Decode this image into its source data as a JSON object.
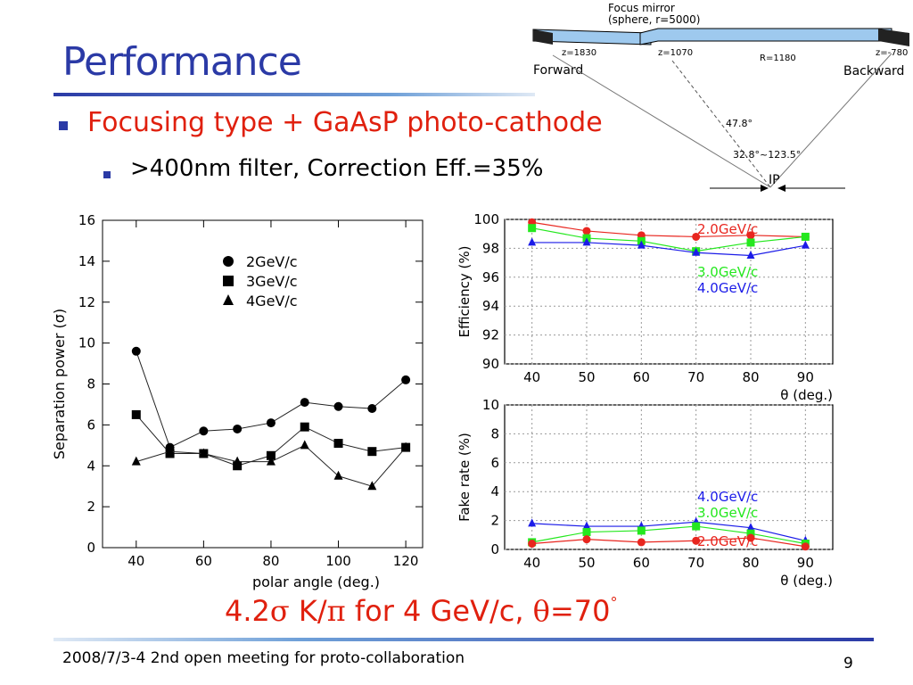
{
  "slide": {
    "title": "Performance",
    "bullet1": "Focusing type + GaAsP photo-cathode",
    "bullet2": ">400nm filter, Correction Eff.=35%",
    "summary_pre": "4.2",
    "summary_sigma": "σ",
    "summary_mid": " K/",
    "summary_pi": "π",
    "summary_post": " for 4 GeV/c, ",
    "summary_theta": "θ",
    "summary_val": "=70",
    "summary_deg": "°",
    "footer": "2008/7/3-4 2nd open meeting for proto-collaboration",
    "page_number": "9",
    "colors": {
      "title": "#2b3aa6",
      "accent": "#e0200e",
      "red": "#e8261f",
      "green": "#24e81e",
      "blue": "#1b1be8"
    }
  },
  "diagram": {
    "mirror_label1": "Focus mirror",
    "mirror_label2": "(sphere, r=5000)",
    "z1": "z=1830",
    "z2": "z=1070",
    "r": "R=1180",
    "z3": "z=-780",
    "forward": "Forward",
    "backward": "Backward",
    "angle1": "47.8°",
    "angle2": "32.8°~123.5°",
    "ip": "IP"
  },
  "chart_data": [
    {
      "type": "scatter",
      "xlabel": "polar angle (deg.)",
      "ylabel": "Separation power (σ)",
      "xlim": [
        30,
        125
      ],
      "ylim": [
        0,
        16
      ],
      "xticks": [
        40,
        60,
        80,
        100,
        120
      ],
      "yticks": [
        0,
        2,
        4,
        6,
        8,
        10,
        12,
        14,
        16
      ],
      "x": [
        40,
        50,
        60,
        70,
        80,
        90,
        100,
        110,
        120
      ],
      "series": [
        {
          "name": "2GeV/c",
          "marker": "circle",
          "values": [
            9.6,
            4.9,
            5.7,
            5.8,
            6.1,
            7.1,
            6.9,
            6.8,
            8.2
          ]
        },
        {
          "name": "3GeV/c",
          "marker": "square",
          "values": [
            6.5,
            4.6,
            4.6,
            4.0,
            4.5,
            5.9,
            5.1,
            4.7,
            4.9
          ]
        },
        {
          "name": "4GeV/c",
          "marker": "triangle",
          "values": [
            4.2,
            4.7,
            4.6,
            4.2,
            4.2,
            5.0,
            3.5,
            3.0,
            4.9
          ]
        }
      ],
      "legend": "top-center",
      "grid": false
    },
    {
      "type": "line",
      "xlabel": "θ (deg.)",
      "ylabel": "Efficiency (%)",
      "xlim": [
        35,
        95
      ],
      "ylim": [
        90,
        100
      ],
      "xticks": [
        40,
        50,
        60,
        70,
        80,
        90
      ],
      "yticks": [
        90,
        92,
        94,
        96,
        98,
        100
      ],
      "x": [
        40,
        50,
        60,
        70,
        80,
        90
      ],
      "series": [
        {
          "name": "2.0GeV/c",
          "color": "#e8261f",
          "values": [
            99.8,
            99.2,
            98.9,
            98.8,
            98.9,
            98.8
          ]
        },
        {
          "name": "3.0GeV/c",
          "color": "#24e81e",
          "values": [
            99.4,
            98.7,
            98.5,
            97.8,
            98.4,
            98.8
          ]
        },
        {
          "name": "4.0GeV/c",
          "color": "#1b1be8",
          "values": [
            98.4,
            98.4,
            98.2,
            97.7,
            97.5,
            98.2
          ]
        }
      ],
      "grid": true
    },
    {
      "type": "line",
      "xlabel": "θ (deg.)",
      "ylabel": "Fake rate (%)",
      "xlim": [
        35,
        95
      ],
      "ylim": [
        0,
        10
      ],
      "xticks": [
        40,
        50,
        60,
        70,
        80,
        90
      ],
      "yticks": [
        0,
        2,
        4,
        6,
        8,
        10
      ],
      "x": [
        40,
        50,
        60,
        70,
        80,
        90
      ],
      "series": [
        {
          "name": "4.0GeV/c",
          "color": "#1b1be8",
          "values": [
            1.8,
            1.6,
            1.6,
            1.9,
            1.5,
            0.6
          ]
        },
        {
          "name": "3.0GeV/c",
          "color": "#24e81e",
          "values": [
            0.5,
            1.2,
            1.3,
            1.6,
            1.1,
            0.4
          ]
        },
        {
          "name": "2.0GeV/c",
          "color": "#e8261f",
          "values": [
            0.4,
            0.7,
            0.5,
            0.6,
            0.8,
            0.2
          ]
        }
      ],
      "grid": true
    }
  ]
}
